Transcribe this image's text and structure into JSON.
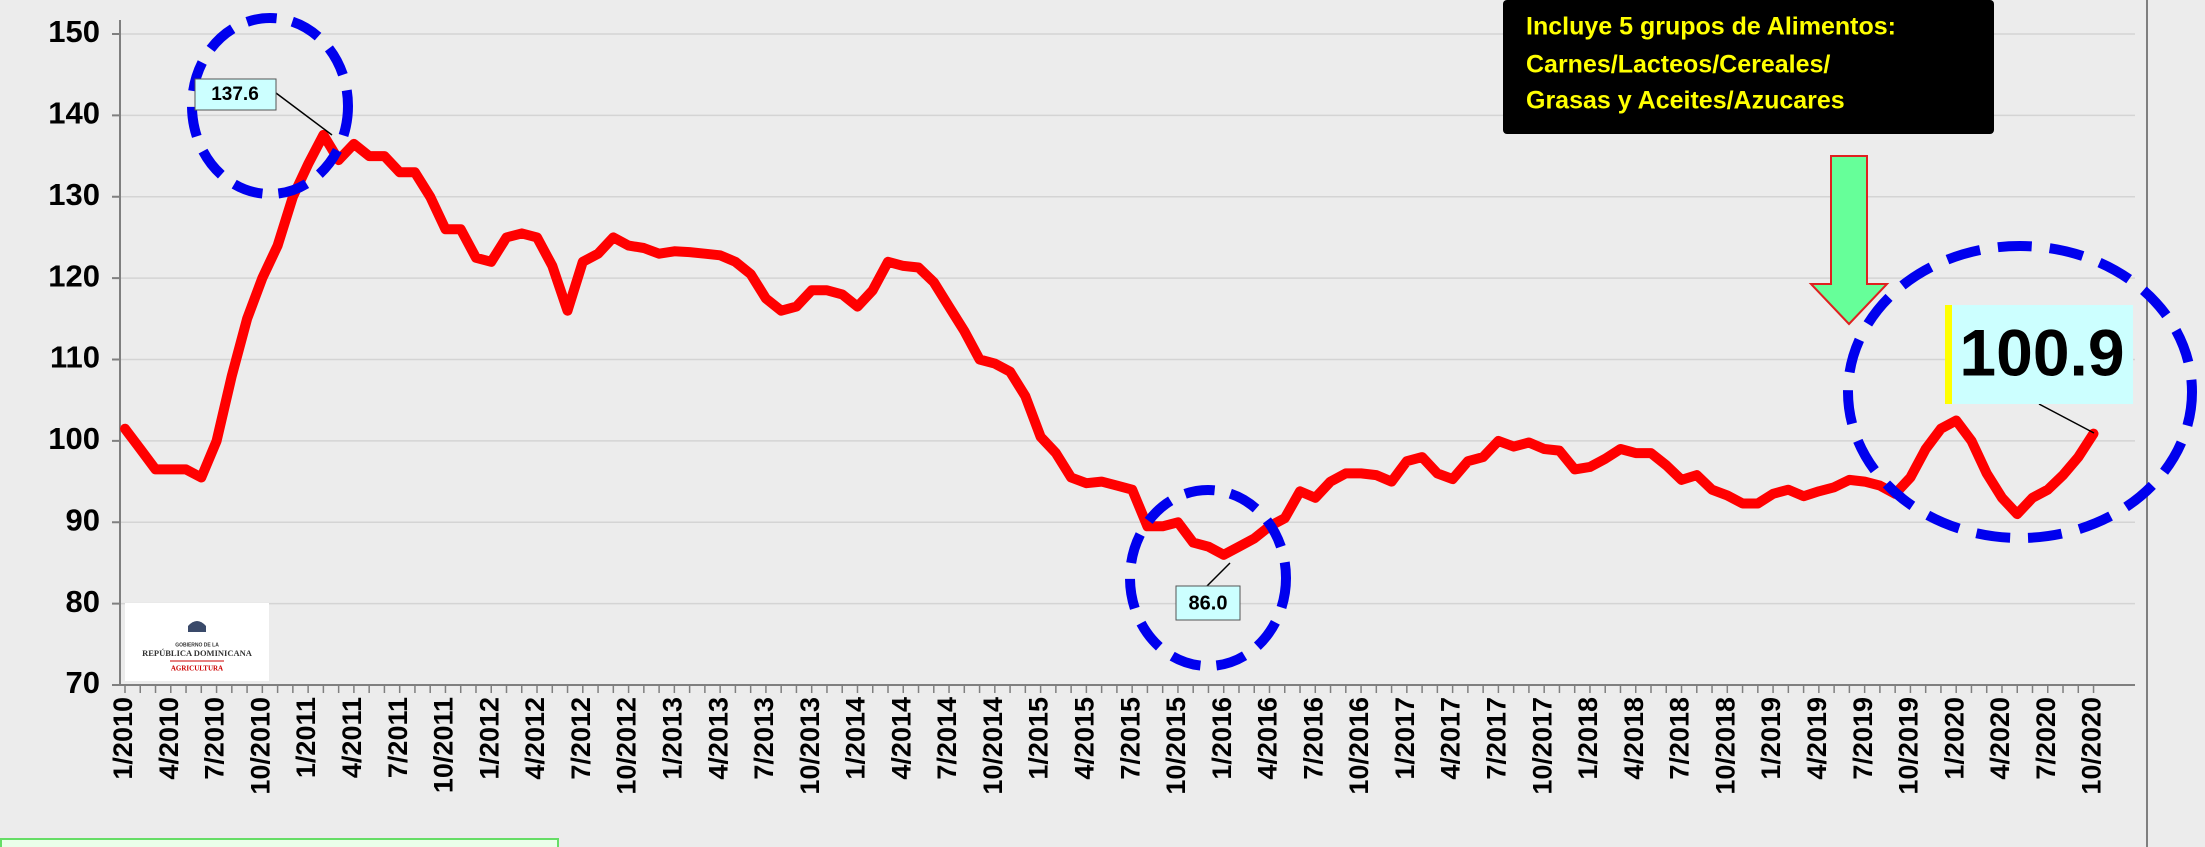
{
  "chart_data": {
    "type": "line",
    "categories": [
      "1/2010",
      null,
      null,
      "4/2010",
      null,
      null,
      "7/2010",
      null,
      null,
      "10/2010",
      null,
      null,
      "1/2011",
      null,
      null,
      "4/2011",
      null,
      null,
      "7/2011",
      null,
      null,
      "10/2011",
      null,
      null,
      "1/2012",
      null,
      null,
      "4/2012",
      null,
      null,
      "7/2012",
      null,
      null,
      "10/2012",
      null,
      null,
      "1/2013",
      null,
      null,
      "4/2013",
      null,
      null,
      "7/2013",
      null,
      null,
      "10/2013",
      null,
      null,
      "1/2014",
      null,
      null,
      "4/2014",
      null,
      null,
      "7/2014",
      null,
      null,
      "10/2014",
      null,
      null,
      "1/2015",
      null,
      null,
      "4/2015",
      null,
      null,
      "7/2015",
      null,
      null,
      "10/2015",
      null,
      null,
      "1/2016",
      null,
      null,
      "4/2016",
      null,
      null,
      "7/2016",
      null,
      null,
      "10/2016",
      null,
      null,
      "1/2017",
      null,
      null,
      "4/2017",
      null,
      null,
      "7/2017",
      null,
      null,
      "10/2017",
      null,
      null,
      "1/2018",
      null,
      null,
      "4/2018",
      null,
      null,
      "7/2018",
      null,
      null,
      "10/2018",
      null,
      null,
      "1/2019",
      null,
      null,
      "4/2019",
      null,
      null,
      "7/2019",
      null,
      null,
      "10/2019",
      null,
      null,
      "1/2020",
      null,
      null,
      "4/2020",
      null,
      null,
      "7/2020",
      null,
      null,
      "10/2020"
    ],
    "series": [
      {
        "color": "#ff0000",
        "values": [
          101.5,
          99,
          96.5,
          96.5,
          96.5,
          95.5,
          100,
          108,
          115,
          120,
          124,
          130,
          134,
          137.6,
          134.5,
          136.5,
          135,
          135,
          133,
          133,
          130,
          126,
          126,
          122.5,
          122,
          125,
          125.5,
          125,
          121.5,
          116,
          122,
          123,
          125,
          124,
          123.7,
          123,
          123.3,
          123.2,
          123,
          122.8,
          122,
          120.5,
          117.5,
          116,
          116.5,
          118.5,
          118.5,
          118,
          116.5,
          118.5,
          122,
          121.5,
          121.3,
          119.5,
          116.5,
          113.5,
          110,
          109.5,
          108.5,
          105.5,
          100.5,
          98.5,
          95.5,
          94.8,
          95,
          94.5,
          94,
          89.5,
          89.5,
          90,
          87.5,
          87,
          86,
          87,
          88,
          89.5,
          90.5,
          93.8,
          93,
          95,
          96,
          96,
          95.8,
          95,
          97.5,
          98,
          96,
          95.3,
          97.5,
          98,
          100,
          99.3,
          99.8,
          99,
          98.8,
          96.5,
          96.8,
          97.8,
          99,
          98.5,
          98.5,
          97,
          95.2,
          95.8,
          94,
          93.3,
          92.3,
          92.3,
          93.5,
          94,
          93.2,
          93.8,
          94.3,
          95.2,
          95,
          94.5,
          93.5,
          95.5,
          99,
          101.5,
          102.5,
          100,
          96,
          93,
          91,
          93,
          94,
          95.8,
          98,
          100.9
        ]
      }
    ],
    "ylim": [
      70,
      150
    ],
    "yticks": [
      70,
      80,
      90,
      100,
      110,
      120,
      130,
      140,
      150
    ],
    "grid": true,
    "annotations": [
      "137.6",
      "86.0",
      "100.9"
    ],
    "note_lines": [
      "Incluye 5 grupos de Alimentos:",
      "Carnes/Lacteos/Cereales/",
      "Grasas y Aceites/Azucares"
    ],
    "logo": [
      "GOBIERNO DE LA",
      "REPÚBLICA DOMINICANA",
      "AGRICULTURA"
    ]
  }
}
